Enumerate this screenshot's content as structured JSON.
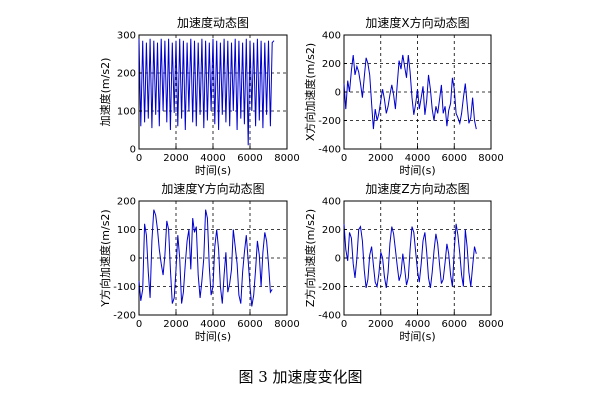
{
  "caption": "图 3  加速度变化图",
  "chart_data": [
    {
      "type": "line",
      "title": "加速度动态图",
      "xlabel": "时间(s)",
      "ylabel": "加速度(m/s2)",
      "xlim": [
        0,
        8000
      ],
      "ylim": [
        0,
        300
      ],
      "xticks": [
        0,
        2000,
        4000,
        6000,
        8000
      ],
      "yticks": [
        0,
        100,
        200,
        300
      ],
      "grid": true,
      "color": "#0000cc",
      "series": [
        {
          "x": [
            0,
            100,
            200,
            300,
            400,
            500,
            600,
            700,
            800,
            900,
            1000,
            1100,
            1200,
            1300,
            1400,
            1500,
            1600,
            1700,
            1800,
            1900,
            2000,
            2100,
            2200,
            2300,
            2400,
            2500,
            2600,
            2700,
            2800,
            2900,
            3000,
            3100,
            3200,
            3300,
            3400,
            3500,
            3600,
            3700,
            3800,
            3900,
            4000,
            4100,
            4200,
            4300,
            4400,
            4500,
            4600,
            4700,
            4800,
            4900,
            5000,
            5100,
            5200,
            5300,
            5400,
            5500,
            5600,
            5700,
            5800,
            5900,
            6000,
            6100,
            6200,
            6300,
            6400,
            6500,
            6600,
            6700,
            6800,
            6900,
            7000,
            7100,
            7200,
            7300
          ],
          "y": [
            290,
            60,
            285,
            70,
            280,
            80,
            290,
            55,
            285,
            90,
            280,
            60,
            290,
            100,
            285,
            70,
            290,
            50,
            280,
            95,
            285,
            60,
            290,
            80,
            285,
            50,
            280,
            100,
            290,
            70,
            285,
            60,
            280,
            90,
            290,
            55,
            285,
            75,
            280,
            100,
            290,
            65,
            285,
            50,
            280,
            90,
            290,
            70,
            285,
            60,
            280,
            100,
            290,
            50,
            285,
            80,
            280,
            65,
            290,
            10,
            285,
            100,
            280,
            60,
            290,
            75,
            285,
            55,
            280,
            90,
            285,
            60,
            280,
            285
          ]
        }
      ]
    },
    {
      "type": "line",
      "title": "加速度X方向动态图",
      "xlabel": "时间(s)",
      "ylabel": "X方向加速度(m/s2)",
      "xlim": [
        0,
        8000
      ],
      "ylim": [
        -400,
        400
      ],
      "xticks": [
        0,
        2000,
        4000,
        6000,
        8000
      ],
      "yticks": [
        -400,
        -200,
        0,
        200,
        400
      ],
      "grid": true,
      "color": "#0000cc",
      "series": [
        {
          "x": [
            0,
            100,
            200,
            300,
            400,
            500,
            600,
            700,
            800,
            900,
            1000,
            1100,
            1200,
            1300,
            1400,
            1500,
            1600,
            1700,
            1800,
            1900,
            2000,
            2100,
            2200,
            2300,
            2400,
            2500,
            2600,
            2700,
            2800,
            2900,
            3000,
            3100,
            3200,
            3300,
            3400,
            3500,
            3600,
            3700,
            3800,
            3900,
            4000,
            4100,
            4200,
            4300,
            4400,
            4500,
            4600,
            4700,
            4800,
            4900,
            5000,
            5100,
            5200,
            5300,
            5400,
            5500,
            5600,
            5700,
            5800,
            5900,
            6000,
            6100,
            6200,
            6300,
            6400,
            6500,
            6600,
            6700,
            6800,
            6900,
            7000,
            7100,
            7200
          ],
          "y": [
            60,
            -120,
            80,
            0,
            150,
            260,
            120,
            180,
            140,
            60,
            -40,
            100,
            240,
            200,
            120,
            -80,
            -260,
            -120,
            -200,
            -150,
            -60,
            20,
            -50,
            -150,
            -100,
            -20,
            50,
            -20,
            -120,
            60,
            220,
            160,
            260,
            180,
            100,
            260,
            140,
            -40,
            -160,
            -80,
            20,
            -120,
            -40,
            40,
            -160,
            -60,
            120,
            20,
            -120,
            -200,
            -100,
            -150,
            -50,
            50,
            -150,
            -100,
            -240,
            -130,
            -80,
            100,
            20,
            -150,
            -180,
            -220,
            -150,
            -40,
            60,
            -80,
            -220,
            -180,
            -40,
            -200,
            -260
          ]
        }
      ]
    },
    {
      "type": "line",
      "title": "加速度Y方向动态图",
      "xlabel": "时间(s)",
      "ylabel": "Y方向加速度(m/s2)",
      "xlim": [
        0,
        8000
      ],
      "ylim": [
        -200,
        200
      ],
      "xticks": [
        0,
        2000,
        4000,
        6000,
        8000
      ],
      "yticks": [
        -200,
        -100,
        0,
        100,
        200
      ],
      "grid": true,
      "color": "#0000cc",
      "series": [
        {
          "x": [
            0,
            100,
            200,
            300,
            400,
            500,
            600,
            700,
            800,
            900,
            1000,
            1100,
            1200,
            1300,
            1400,
            1500,
            1600,
            1700,
            1800,
            1900,
            2000,
            2100,
            2200,
            2300,
            2400,
            2500,
            2600,
            2700,
            2800,
            2900,
            3000,
            3100,
            3200,
            3300,
            3400,
            3500,
            3600,
            3700,
            3800,
            3900,
            4000,
            4100,
            4200,
            4300,
            4400,
            4500,
            4600,
            4700,
            4800,
            4900,
            5000,
            5100,
            5200,
            5300,
            5400,
            5500,
            5600,
            5700,
            5800,
            5900,
            6000,
            6100,
            6200,
            6300,
            6400,
            6500,
            6600,
            6700,
            6800,
            6900,
            7000,
            7100,
            7200
          ],
          "y": [
            -80,
            -150,
            -110,
            120,
            80,
            -50,
            -140,
            60,
            170,
            150,
            100,
            30,
            -20,
            -60,
            10,
            130,
            100,
            -40,
            -160,
            -140,
            -40,
            80,
            0,
            -160,
            -120,
            -20,
            60,
            100,
            -40,
            140,
            90,
            110,
            -60,
            -140,
            -80,
            0,
            170,
            140,
            -30,
            -130,
            -100,
            40,
            100,
            30,
            -100,
            -160,
            -60,
            20,
            -120,
            -90,
            -40,
            100,
            40,
            -20,
            -130,
            -160,
            -50,
            20,
            80,
            -10,
            -100,
            -170,
            -130,
            -40,
            60,
            10,
            -100,
            20,
            90,
            60,
            -20,
            -120,
            -110
          ]
        }
      ]
    },
    {
      "type": "line",
      "title": "加速度Z方向动态图",
      "xlabel": "时间(s)",
      "ylabel": "Z方向加速度(m/s2)",
      "xlim": [
        0,
        8000
      ],
      "ylim": [
        -400,
        400
      ],
      "xticks": [
        0,
        2000,
        4000,
        6000,
        8000
      ],
      "yticks": [
        -400,
        -200,
        0,
        200,
        400
      ],
      "grid": true,
      "color": "#0000cc",
      "series": [
        {
          "x": [
            0,
            100,
            200,
            300,
            400,
            500,
            600,
            700,
            800,
            900,
            1000,
            1100,
            1200,
            1300,
            1400,
            1500,
            1600,
            1700,
            1800,
            1900,
            2000,
            2100,
            2200,
            2300,
            2400,
            2500,
            2600,
            2700,
            2800,
            2900,
            3000,
            3100,
            3200,
            3300,
            3400,
            3500,
            3600,
            3700,
            3800,
            3900,
            4000,
            4100,
            4200,
            4300,
            4400,
            4500,
            4600,
            4700,
            4800,
            4900,
            5000,
            5100,
            5200,
            5300,
            5400,
            5500,
            5600,
            5700,
            5800,
            5900,
            6000,
            6100,
            6200,
            6300,
            6400,
            6500,
            6600,
            6700,
            6800,
            6900,
            7000,
            7100,
            7200
          ],
          "y": [
            240,
            60,
            -20,
            180,
            140,
            -40,
            -140,
            0,
            200,
            220,
            120,
            -80,
            -210,
            -150,
            20,
            80,
            -50,
            -170,
            -200,
            -110,
            40,
            0,
            -130,
            -210,
            -100,
            100,
            220,
            170,
            60,
            -60,
            -160,
            -110,
            30,
            -70,
            -190,
            -140,
            60,
            220,
            180,
            40,
            -90,
            -170,
            -40,
            120,
            180,
            40,
            -140,
            -210,
            -100,
            50,
            170,
            100,
            -50,
            -180,
            -150,
            -30,
            100,
            30,
            -120,
            -200,
            60,
            240,
            160,
            30,
            -120,
            -200,
            200,
            80,
            -100,
            -200,
            -60,
            80,
            30
          ]
        }
      ]
    }
  ]
}
